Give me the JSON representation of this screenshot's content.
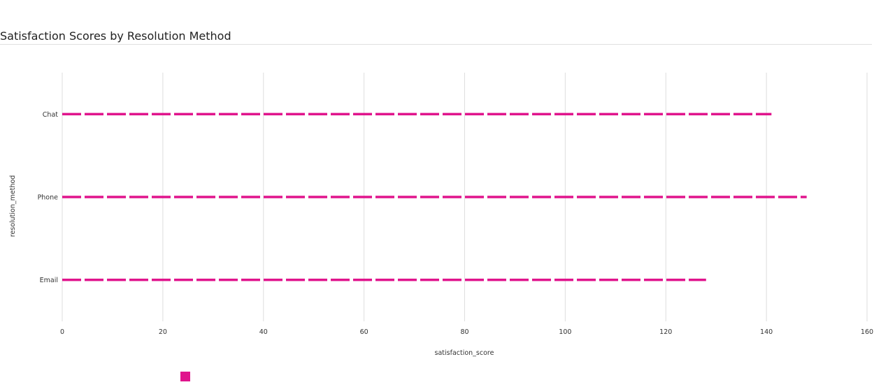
{
  "chart_data": {
    "type": "bar",
    "title": "Satisfaction Scores by Resolution Method",
    "xlabel": "satisfaction_score",
    "ylabel": "resolution_method",
    "orientation": "horizontal",
    "categories": [
      "Chat",
      "Phone",
      "Email"
    ],
    "values": [
      141,
      148,
      128
    ],
    "xlim": [
      0,
      160
    ],
    "xticks": [
      0,
      20,
      40,
      60,
      80,
      100,
      120,
      140,
      160
    ],
    "grid": true,
    "bar_style": "dashed",
    "color": "#e0148c",
    "legend": {
      "placement": "bottom-left",
      "entries": [
        {
          "label": "",
          "color": "#e0148c"
        }
      ]
    }
  }
}
